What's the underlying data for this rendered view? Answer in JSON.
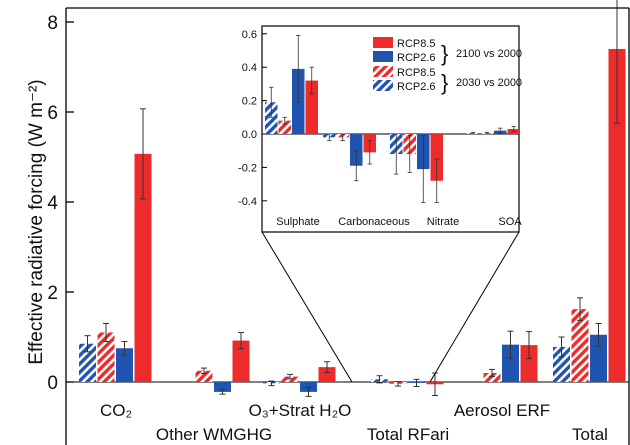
{
  "colors": {
    "rcp85": "#ee2b2b",
    "rcp26": "#1f55b0",
    "axis": "#000000",
    "error_bar": "#333333"
  },
  "chart_data": [
    {
      "type": "bar",
      "subtitle": "",
      "ylabel": "Effective radiative forcing (W m⁻²)",
      "ylim": [
        -1.4,
        8.2
      ],
      "yticks": [
        0,
        2,
        4,
        6,
        8
      ],
      "grid": false,
      "category_labels_row1": [
        "CO₂",
        "O₃+Strat H₂O",
        "Aerosol ERF"
      ],
      "category_labels_row2": [
        "Other WMGHG",
        "Total RFari",
        "Total"
      ],
      "categories": [
        "CO₂",
        "Other WMGHG",
        "O₃+Strat H₂O",
        "Total RFari",
        "Aerosol ERF",
        "Total"
      ],
      "series": [
        {
          "name": "RCP2.6",
          "period": "2030 vs 2000",
          "color": "rcp26",
          "hatched": true,
          "values": [
            0.85,
            0.0,
            -0.03,
            0.06,
            0.0,
            0.78
          ],
          "errors": [
            0.18,
            0.0,
            0.05,
            0.08,
            0.0,
            0.22
          ]
        },
        {
          "name": "RCP8.5",
          "period": "2030 vs 2000",
          "color": "rcp85",
          "hatched": true,
          "values": [
            1.1,
            0.25,
            0.12,
            -0.04,
            0.2,
            1.62
          ],
          "errors": [
            0.2,
            0.06,
            0.05,
            0.05,
            0.08,
            0.25
          ]
        },
        {
          "name": "RCP2.6",
          "period": "2100 vs 2000",
          "color": "rcp26",
          "hatched": false,
          "values": [
            0.75,
            -0.22,
            -0.22,
            -0.02,
            0.83,
            1.05
          ],
          "errors": [
            0.15,
            0.05,
            0.1,
            0.08,
            0.3,
            0.25
          ]
        },
        {
          "name": "RCP8.5",
          "period": "2100 vs 2000",
          "color": "rcp85",
          "hatched": false,
          "values": [
            5.07,
            0.92,
            0.33,
            -0.05,
            0.82,
            7.4
          ],
          "errors": [
            1.0,
            0.18,
            0.12,
            0.25,
            0.3,
            1.65
          ]
        }
      ]
    },
    {
      "type": "bar",
      "inset": true,
      "ylim": [
        -0.5,
        0.6
      ],
      "yticks": [
        -0.4,
        -0.2,
        0.0,
        0.2,
        0.4,
        0.6
      ],
      "ytick_labels": [
        "-0.4",
        "-0.2",
        "0.0",
        "0.2",
        "0.4",
        "0.6"
      ],
      "categories": [
        "Sulphate",
        "Carbonaceous",
        "Nitrate",
        "SOA"
      ],
      "legend": [
        {
          "label": "RCP8.5",
          "color": "rcp85",
          "hatched": false
        },
        {
          "label": "RCP2.6",
          "color": "rcp26",
          "hatched": false
        },
        {
          "label": "RCP8.5",
          "color": "rcp85",
          "hatched": true
        },
        {
          "label": "RCP2.6",
          "color": "rcp26",
          "hatched": true
        }
      ],
      "legend_groups": [
        "2100 vs 2000",
        "2030 vs 2000"
      ],
      "legend_placement": "top-right",
      "series": [
        {
          "name": "RCP2.6",
          "period": "2030 vs 2000",
          "color": "rcp26",
          "hatched": true,
          "values": [
            0.19,
            -0.02,
            -0.12,
            0.005
          ],
          "errors": [
            0.09,
            0.02,
            0.12,
            0.005
          ]
        },
        {
          "name": "RCP8.5",
          "period": "2030 vs 2000",
          "color": "rcp85",
          "hatched": true,
          "values": [
            0.08,
            -0.02,
            -0.12,
            0.005
          ],
          "errors": [
            0.02,
            0.02,
            0.11,
            0.005
          ]
        },
        {
          "name": "RCP2.6",
          "period": "2100 vs 2000",
          "color": "rcp26",
          "hatched": false,
          "values": [
            0.39,
            -0.19,
            -0.21,
            0.02
          ],
          "errors": [
            0.2,
            0.09,
            0.2,
            0.015
          ]
        },
        {
          "name": "RCP8.5",
          "period": "2100 vs 2000",
          "color": "rcp85",
          "hatched": false,
          "values": [
            0.32,
            -0.11,
            -0.28,
            0.03
          ],
          "errors": [
            0.08,
            0.07,
            0.13,
            0.015
          ]
        }
      ]
    }
  ]
}
